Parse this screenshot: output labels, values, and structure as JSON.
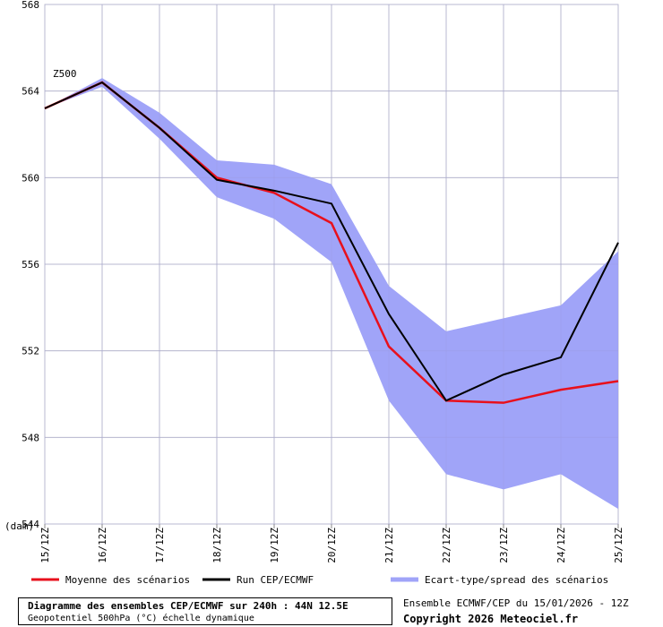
{
  "chart_data": {
    "type": "line",
    "variable_label": "Z500",
    "unit_label": "(dam)",
    "x": [
      "15/12Z",
      "16/12Z",
      "17/12Z",
      "18/12Z",
      "19/12Z",
      "20/12Z",
      "21/12Z",
      "22/12Z",
      "23/12Z",
      "24/12Z",
      "25/12Z"
    ],
    "ylim": [
      544,
      568
    ],
    "yticks": [
      544,
      548,
      552,
      556,
      560,
      564,
      568
    ],
    "grid": true,
    "legend_position": "bottom",
    "series": [
      {
        "name": "Moyenne des scénarios",
        "color": "#e8101c",
        "values": [
          563.2,
          564.4,
          562.3,
          560.0,
          559.3,
          557.9,
          552.2,
          549.7,
          549.6,
          550.2,
          550.6
        ]
      },
      {
        "name": "Run CEP/ECMWF",
        "color": "#000000",
        "values": [
          563.2,
          564.4,
          562.3,
          559.9,
          559.4,
          558.8,
          553.7,
          549.7,
          550.9,
          551.7,
          557.0
        ]
      },
      {
        "name": "Ecart-type/spread des scénarios",
        "color": "#a0a4f8",
        "type": "band",
        "upper": [
          563.2,
          564.6,
          563.0,
          560.8,
          560.6,
          559.7,
          555.0,
          552.9,
          553.5,
          554.1,
          556.6
        ],
        "lower": [
          563.2,
          564.2,
          561.8,
          559.1,
          558.1,
          556.1,
          549.7,
          546.3,
          545.6,
          546.3,
          544.7
        ]
      }
    ]
  },
  "footer": {
    "title": "Diagramme des ensembles CEP/ECMWF sur 240h : 44N 12.5E",
    "subtitle": "Geopotentiel 500hPa (°C) échelle dynamique",
    "run_info": "Ensemble ECMWF/CEP du 15/01/2026 - 12Z",
    "copyright": "Copyright 2026 Meteociel.fr"
  }
}
